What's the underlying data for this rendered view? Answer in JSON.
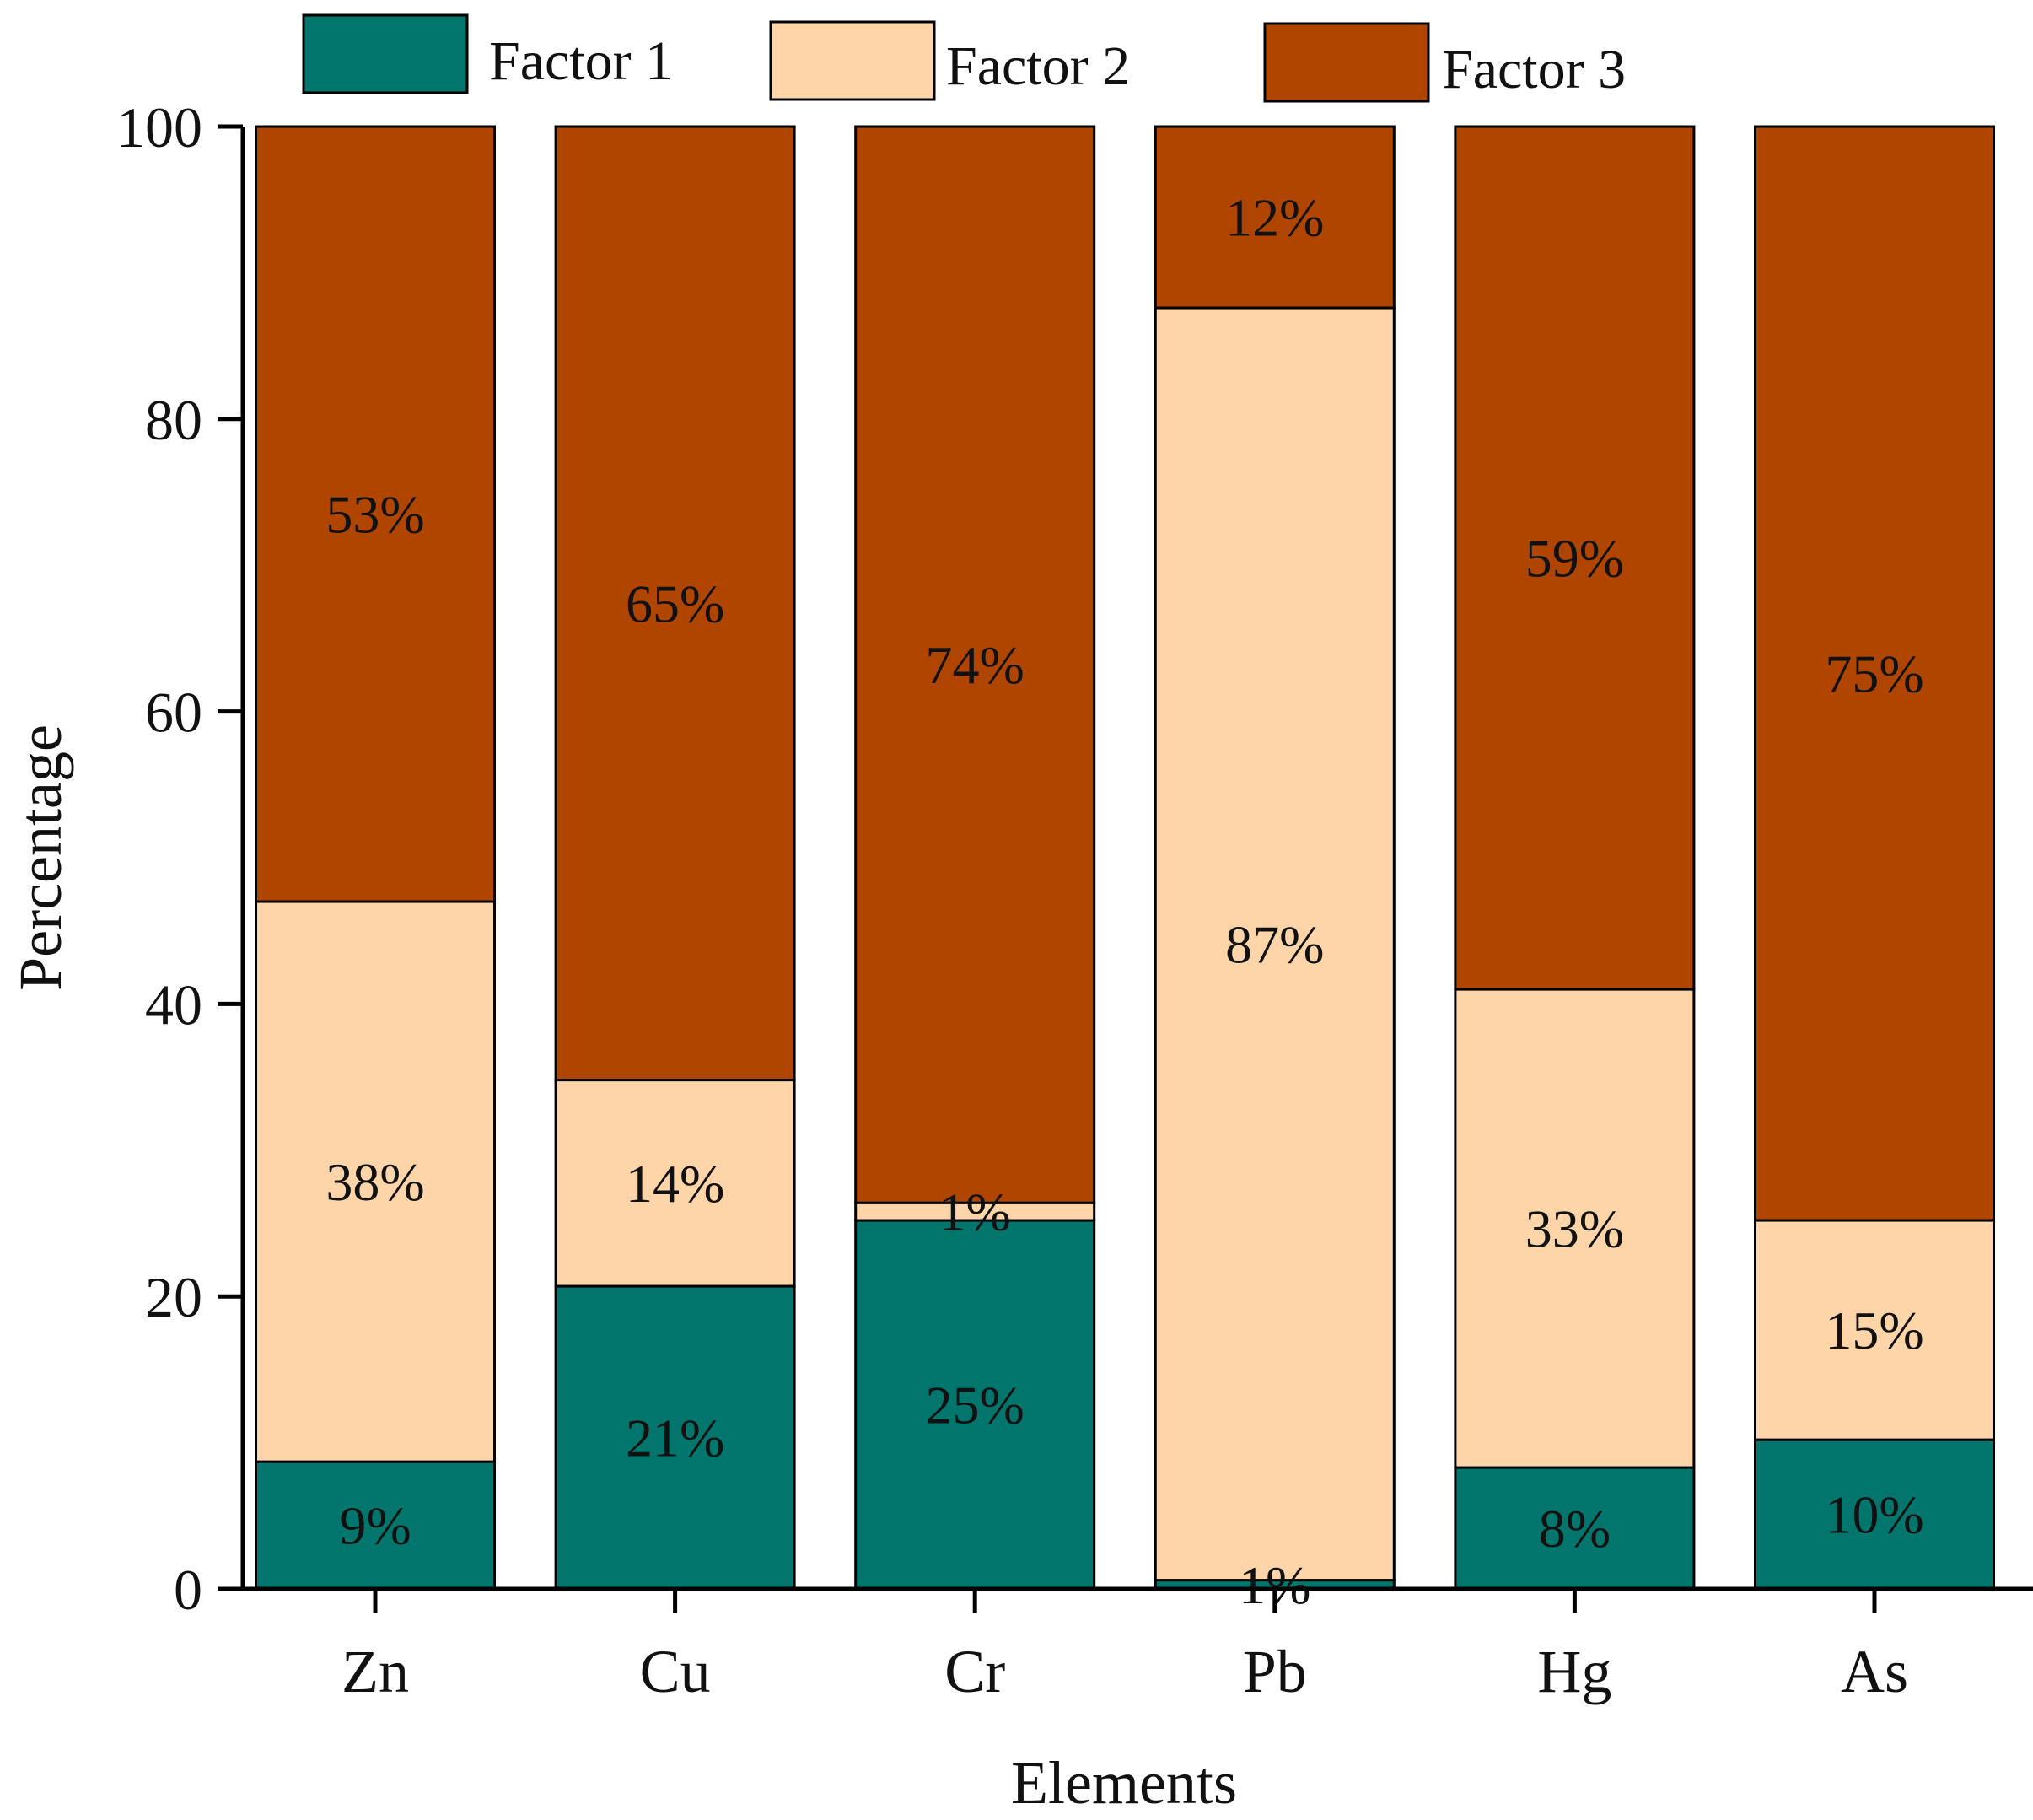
{
  "chart_data": {
    "type": "bar",
    "stacked": true,
    "title": "",
    "xlabel": "Elements",
    "ylabel": "Percentage",
    "ylim": [
      0,
      100
    ],
    "yticks": [
      0,
      20,
      40,
      60,
      80,
      100
    ],
    "ytick_labels": [
      "0",
      "20",
      "40",
      "60",
      "80",
      "100"
    ],
    "grid": false,
    "legend_position": "top",
    "categories": [
      "Zn",
      "Cu",
      "Cr",
      "Pb",
      "Hg",
      "As"
    ],
    "series": [
      {
        "name": "Factor 1",
        "color": "#02766C",
        "values": [
          8.7,
          20.7,
          25.2,
          0.6,
          8.3,
          10.2
        ],
        "labels": [
          "9%",
          "21%",
          "25%",
          "1%",
          "8%",
          "10%"
        ]
      },
      {
        "name": "Factor 2",
        "color": "#FED5A9",
        "values": [
          38.3,
          14.1,
          1.2,
          87.0,
          32.7,
          15.0
        ],
        "labels": [
          "38%",
          "14%",
          "1%",
          "87%",
          "33%",
          "15%"
        ]
      },
      {
        "name": "Factor 3",
        "color": "#B04500",
        "values": [
          53.0,
          65.2,
          73.6,
          12.4,
          59.0,
          74.8
        ],
        "labels": [
          "53%",
          "65%",
          "74%",
          "12%",
          "59%",
          "75%"
        ]
      }
    ]
  }
}
